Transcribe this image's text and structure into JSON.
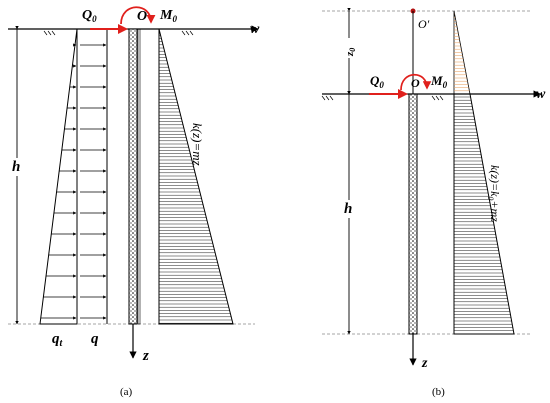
{
  "panel_a": {
    "caption": "(a)",
    "labels": {
      "Q": "Q",
      "Q_sub": "0",
      "O": "O",
      "M": "M",
      "M_sub": "0",
      "w": "w",
      "h": "h",
      "q_t": "q",
      "q_t_sub": "t",
      "q": "q",
      "z": "z",
      "kz": "k(z)=mz"
    }
  },
  "panel_b": {
    "caption": "(b)",
    "labels": {
      "O_prime": "O′",
      "z0": "z",
      "z0_sub": "0",
      "Q": "Q",
      "Q_sub": "0",
      "O": "O",
      "M": "M",
      "M_sub": "0",
      "w": "w",
      "h": "h",
      "z": "z",
      "kz": "k(z)=k",
      "kz_sub": "0",
      "kz_tail": "+mz"
    }
  },
  "colors": {
    "force_arrow": "#e0201c",
    "hatch_upper": "#e8a060",
    "hatch": "#000000",
    "dashed": "#888888"
  }
}
